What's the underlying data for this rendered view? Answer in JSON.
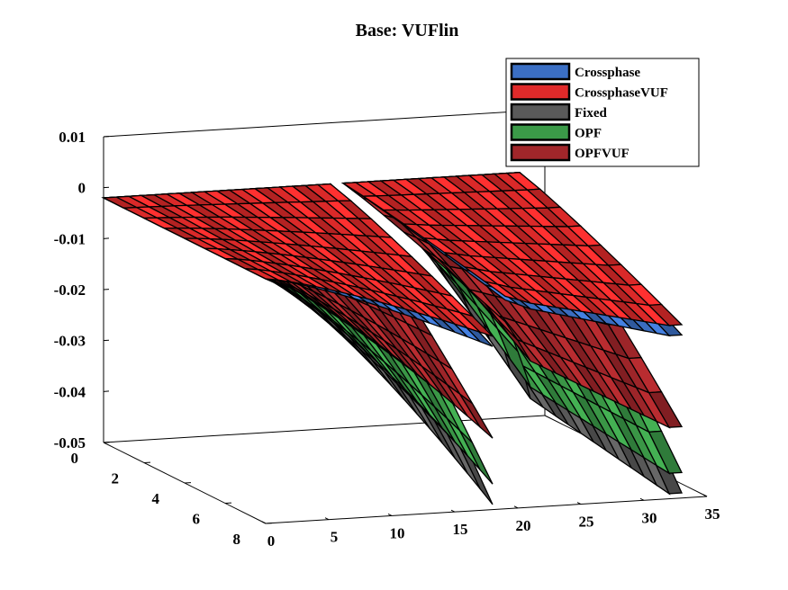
{
  "chart_data": {
    "type": "surface3d",
    "title": "Base: VUFlin",
    "xlabel": "",
    "ylabel": "",
    "zlabel": "",
    "x_ticks": [
      0,
      5,
      10,
      15,
      20,
      25,
      30,
      35
    ],
    "y_ticks": [
      0,
      2,
      4,
      6,
      8
    ],
    "z_ticks": [
      "0.01",
      "0",
      "-0.01",
      "-0.02",
      "-0.03",
      "-0.04",
      "-0.05"
    ],
    "xlim": [
      0,
      35
    ],
    "ylim": [
      0,
      8
    ],
    "zlim": [
      -0.05,
      0.01
    ],
    "legend_position": "top-right",
    "series": [
      {
        "name": "Crossphase",
        "color": "#3b6fc4",
        "depth": 0.035,
        "z_min": -0.018,
        "ridge_drop": 0.15
      },
      {
        "name": "CrossphaseVUF",
        "color": "#e02a2a",
        "depth": 0.028,
        "z_min": -0.016,
        "ridge_drop": 0.12
      },
      {
        "name": "Fixed",
        "color": "#5a5a5a",
        "depth": 1.0,
        "z_min": -0.049,
        "ridge_drop": 0.9
      },
      {
        "name": "OPF",
        "color": "#3b9a48",
        "depth": 0.88,
        "z_min": -0.045,
        "ridge_drop": 0.72
      },
      {
        "name": "OPFVUF",
        "color": "#a1262a",
        "depth": 0.6,
        "z_min": -0.036,
        "ridge_drop": 0.48
      }
    ]
  }
}
